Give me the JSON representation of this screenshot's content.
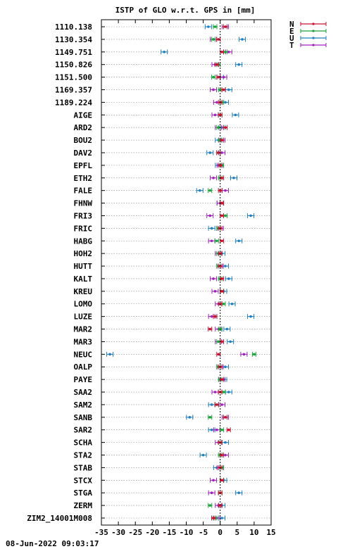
{
  "chart_data": {
    "type": "scatter",
    "title": "ISTP of GLO w.r.t. GPS in [mm]",
    "xlim": [
      -35,
      15
    ],
    "xticks": [
      -35,
      -30,
      -25,
      -20,
      -15,
      -10,
      -5,
      0,
      5,
      10,
      15
    ],
    "grid": true,
    "legend_position": "top-right",
    "series": [
      {
        "name": "N",
        "color": "#c8102e"
      },
      {
        "name": "E",
        "color": "#1aa33a"
      },
      {
        "name": "U",
        "color": "#1f7fc0"
      },
      {
        "name": "T",
        "color": "#a020c0"
      }
    ],
    "stations": [
      {
        "label": "1110.138",
        "N": 1.5,
        "E": -1.5,
        "U": -3.5,
        "T": 1.5
      },
      {
        "label": "1130.354",
        "N": -0.5,
        "E": -2.0,
        "U": 6.5,
        "T": -2.0
      },
      {
        "label": "1149.751",
        "N": 0.5,
        "E": 1.5,
        "U": -16.5,
        "T": 2.5
      },
      {
        "label": "1150.826",
        "N": -1.0,
        "E": -0.5,
        "U": 5.5,
        "T": -1.5
      },
      {
        "label": "1151.500",
        "N": -0.5,
        "E": -2.0,
        "U": 0.0,
        "T": 1.0
      },
      {
        "label": "1169.357",
        "N": 1.0,
        "E": 0.0,
        "U": 2.5,
        "T": -2.0
      },
      {
        "label": "1189.224",
        "N": 0.0,
        "E": 0.5,
        "U": 1.5,
        "T": -1.0
      },
      {
        "label": "AIGE",
        "N": 0.0,
        "E": 0.0,
        "U": 4.5,
        "T": -1.5
      },
      {
        "label": "ARD2",
        "N": 1.5,
        "E": -0.5,
        "U": 0.5,
        "T": -0.5
      },
      {
        "label": "BOU2",
        "N": 0.5,
        "E": 0.0,
        "U": -0.5,
        "T": 0.5
      },
      {
        "label": "DAV2",
        "N": -0.5,
        "E": -0.5,
        "U": -3.0,
        "T": 0.5
      },
      {
        "label": "EPFL",
        "N": 0.0,
        "E": 0.5,
        "U": -0.5,
        "T": 0.0
      },
      {
        "label": "ETH2",
        "N": 0.5,
        "E": 0.0,
        "U": 4.0,
        "T": -2.0
      },
      {
        "label": "FALE",
        "N": 0.0,
        "E": -3.0,
        "U": -6.0,
        "T": 1.5
      },
      {
        "label": "FHNW",
        "N": 0.5,
        "E": 0.5,
        "U": 0.0,
        "T": 0.0
      },
      {
        "label": "FRI3",
        "N": 0.5,
        "E": 1.5,
        "U": 9.0,
        "T": -3.0
      },
      {
        "label": "FRIC",
        "N": 0.0,
        "E": -0.5,
        "U": -2.5,
        "T": 0.0
      },
      {
        "label": "HABG",
        "N": 0.5,
        "E": -1.0,
        "U": 5.5,
        "T": -2.5
      },
      {
        "label": "HOH2",
        "N": 0.0,
        "E": -0.5,
        "U": 0.5,
        "T": -0.5
      },
      {
        "label": "HUTT",
        "N": 0.0,
        "E": -0.5,
        "U": 1.5,
        "T": 0.0
      },
      {
        "label": "KALT",
        "N": 0.5,
        "E": 0.0,
        "U": 2.5,
        "T": -2.0
      },
      {
        "label": "KREU",
        "N": 0.5,
        "E": 0.5,
        "U": 1.0,
        "T": -1.5
      },
      {
        "label": "LOMO",
        "N": 0.0,
        "E": 1.0,
        "U": 3.5,
        "T": -0.5
      },
      {
        "label": "LUZE",
        "N": -1.5,
        "E": -1.5,
        "U": 9.0,
        "T": -2.5
      },
      {
        "label": "MAR2",
        "N": -3.0,
        "E": 0.0,
        "U": 2.0,
        "T": -0.5
      },
      {
        "label": "MAR3",
        "N": 0.5,
        "E": -0.5,
        "U": 3.0,
        "T": -0.5
      },
      {
        "label": "NEUC",
        "N": -0.5,
        "E": 10.0,
        "U": -32.5,
        "T": 7.0
      },
      {
        "label": "OALP",
        "N": 0.0,
        "E": -0.5,
        "U": 1.5,
        "T": 0.0
      },
      {
        "label": "PAYE",
        "N": 0.5,
        "E": 0.0,
        "U": 1.0,
        "T": 0.5
      },
      {
        "label": "SAA2",
        "N": 0.0,
        "E": 1.0,
        "U": 2.5,
        "T": -1.5
      },
      {
        "label": "SAM2",
        "N": -1.0,
        "E": -1.0,
        "U": -2.5,
        "T": 0.5
      },
      {
        "label": "SANB",
        "N": 1.5,
        "E": -3.0,
        "U": -9.0,
        "T": 1.5
      },
      {
        "label": "SAR2",
        "N": 2.5,
        "E": 0.5,
        "U": -2.5,
        "T": -1.0
      },
      {
        "label": "SCHA",
        "N": 0.0,
        "E": 0.0,
        "U": 1.5,
        "T": -0.5
      },
      {
        "label": "STA2",
        "N": 0.5,
        "E": 0.0,
        "U": -5.0,
        "T": 1.5
      },
      {
        "label": "STAB",
        "N": 0.0,
        "E": 0.5,
        "U": -1.0,
        "T": 0.0
      },
      {
        "label": "STCX",
        "N": 0.5,
        "E": 0.5,
        "U": 1.0,
        "T": -2.0
      },
      {
        "label": "STGA",
        "N": 0.0,
        "E": 0.0,
        "U": 5.5,
        "T": -2.5
      },
      {
        "label": "ZERM",
        "N": 0.0,
        "E": -3.0,
        "U": 0.5,
        "T": -0.5
      },
      {
        "label": "ZIM2_14001M008",
        "N": -2.0,
        "E": -1.5,
        "U": 0.5,
        "T": -1.0
      }
    ]
  },
  "footer": {
    "timestamp": "08-Jun-2022 09:03:17"
  }
}
